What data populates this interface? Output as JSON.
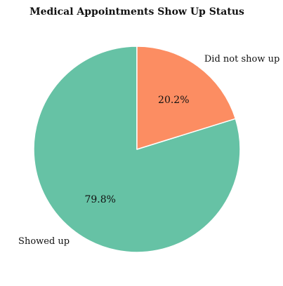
{
  "chart_data": {
    "type": "pie",
    "title": "Medical Appointments Show Up Status",
    "start_angle_deg": 90,
    "direction": "counterclockwise",
    "slices": [
      {
        "label": "Showed up",
        "value": 79.8,
        "pct_label": "79.8%",
        "color": "#66c2a5"
      },
      {
        "label": "Did not show up",
        "value": 20.2,
        "pct_label": "20.2%",
        "color": "#fc8d62"
      }
    ],
    "edge_color": "#ffffff"
  }
}
